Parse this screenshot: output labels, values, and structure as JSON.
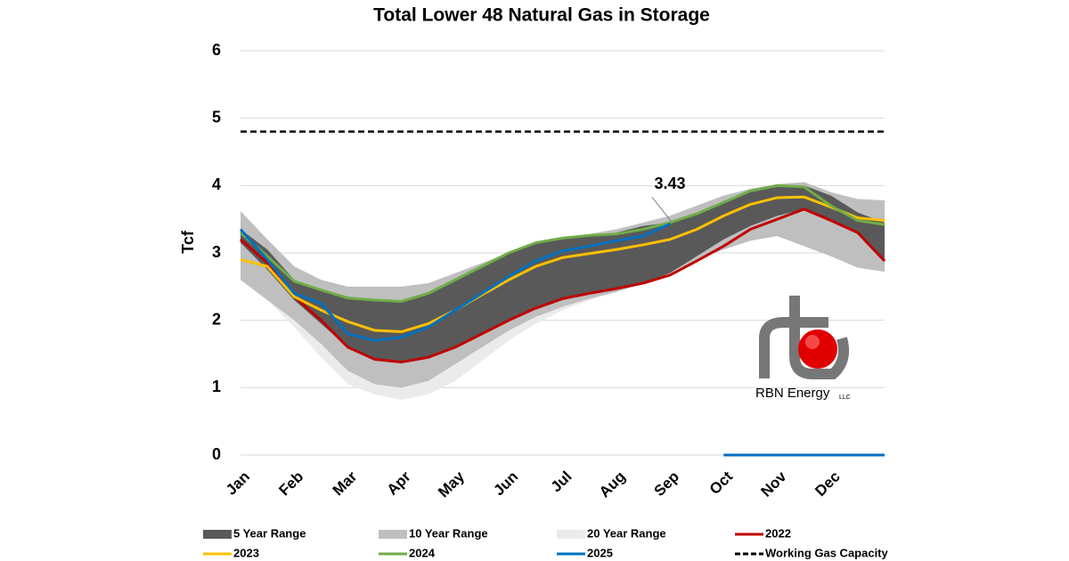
{
  "chart_data": {
    "type": "line",
    "title": "Total Lower 48 Natural Gas in Storage",
    "y_label": "Tcf",
    "categories": [
      "Jan",
      null,
      "Feb",
      null,
      "Mar",
      null,
      "Apr",
      null,
      "May",
      null,
      "Jun",
      null,
      "Jul",
      null,
      "Aug",
      null,
      "Sep",
      null,
      "Oct",
      null,
      "Nov",
      null,
      "Dec",
      null,
      null
    ],
    "ylim": [
      0,
      6
    ],
    "yticks": [
      0,
      1,
      2,
      3,
      4,
      5,
      6
    ],
    "grid": true,
    "series": [
      {
        "name": "20 Year Range",
        "color": "#ebebeb",
        "high": [
          3.62,
          3.2,
          2.8,
          2.6,
          2.5,
          2.5,
          2.5,
          2.55,
          2.7,
          2.85,
          3.0,
          3.15,
          3.22,
          3.28,
          3.35,
          3.45,
          3.55,
          3.7,
          3.85,
          3.95,
          4.02,
          4.05,
          3.9,
          3.8,
          3.78
        ],
        "low": [
          2.6,
          2.3,
          1.9,
          1.45,
          1.05,
          0.9,
          0.82,
          0.9,
          1.1,
          1.4,
          1.7,
          1.95,
          2.15,
          2.3,
          2.42,
          2.55,
          2.7,
          2.9,
          3.05,
          3.18,
          3.25,
          3.1,
          2.95,
          2.78,
          2.72
        ]
      },
      {
        "name": "10 Year Range",
        "color": "#bfbfbf",
        "high": [
          3.62,
          3.2,
          2.8,
          2.6,
          2.5,
          2.5,
          2.5,
          2.55,
          2.7,
          2.85,
          3.0,
          3.15,
          3.22,
          3.28,
          3.35,
          3.45,
          3.55,
          3.7,
          3.85,
          3.95,
          4.02,
          4.05,
          3.9,
          3.8,
          3.78
        ],
        "low": [
          2.6,
          2.3,
          2.0,
          1.65,
          1.25,
          1.05,
          1.0,
          1.1,
          1.35,
          1.6,
          1.85,
          2.05,
          2.2,
          2.32,
          2.42,
          2.55,
          2.7,
          2.9,
          3.05,
          3.18,
          3.25,
          3.1,
          2.95,
          2.78,
          2.72
        ]
      },
      {
        "name": "5 Year Range",
        "color": "#595959",
        "high": [
          3.35,
          3.05,
          2.6,
          2.45,
          2.35,
          2.3,
          2.3,
          2.4,
          2.6,
          2.8,
          3.0,
          3.15,
          3.2,
          3.25,
          3.3,
          3.4,
          3.45,
          3.6,
          3.75,
          3.9,
          3.98,
          4.0,
          3.85,
          3.6,
          3.45
        ],
        "low": [
          3.15,
          2.75,
          2.3,
          1.95,
          1.6,
          1.42,
          1.38,
          1.45,
          1.6,
          1.8,
          2.0,
          2.2,
          2.3,
          2.4,
          2.45,
          2.55,
          2.7,
          2.95,
          3.2,
          3.4,
          3.55,
          3.65,
          3.5,
          3.3,
          2.9
        ]
      },
      {
        "name": "2022",
        "color": "#c00000",
        "values": [
          3.2,
          2.85,
          2.35,
          2.0,
          1.6,
          1.42,
          1.38,
          1.45,
          1.6,
          1.8,
          2.0,
          2.18,
          2.32,
          2.4,
          2.47,
          2.55,
          2.67,
          2.88,
          3.1,
          3.35,
          3.5,
          3.65,
          3.48,
          3.3,
          2.88
        ]
      },
      {
        "name": "2023",
        "color": "#ffc000",
        "values": [
          2.9,
          2.8,
          2.35,
          2.15,
          1.98,
          1.85,
          1.83,
          1.95,
          2.15,
          2.38,
          2.6,
          2.8,
          2.93,
          2.99,
          3.05,
          3.12,
          3.2,
          3.35,
          3.55,
          3.72,
          3.82,
          3.83,
          3.68,
          3.52,
          3.48
        ]
      },
      {
        "name": "2024",
        "color": "#70ad47",
        "values": [
          3.3,
          2.95,
          2.58,
          2.45,
          2.33,
          2.3,
          2.28,
          2.4,
          2.6,
          2.8,
          3.0,
          3.15,
          3.22,
          3.26,
          3.28,
          3.35,
          3.45,
          3.58,
          3.75,
          3.92,
          4.0,
          3.98,
          3.7,
          3.48,
          3.42
        ]
      },
      {
        "name": "2025",
        "color": "#0070c0",
        "values": [
          3.35,
          2.9,
          2.4,
          2.25,
          1.8,
          1.7,
          1.75,
          1.9,
          2.15,
          2.4,
          2.65,
          2.88,
          3.03,
          3.1,
          3.18,
          3.25,
          3.43,
          null,
          0,
          0,
          0,
          0,
          0,
          0,
          0
        ]
      }
    ],
    "capacity": {
      "name": "Working Gas Capacity",
      "value": 4.8,
      "color": "#000000"
    },
    "logo_text": "RBN Energy",
    "logo_suffix": "LLC"
  }
}
